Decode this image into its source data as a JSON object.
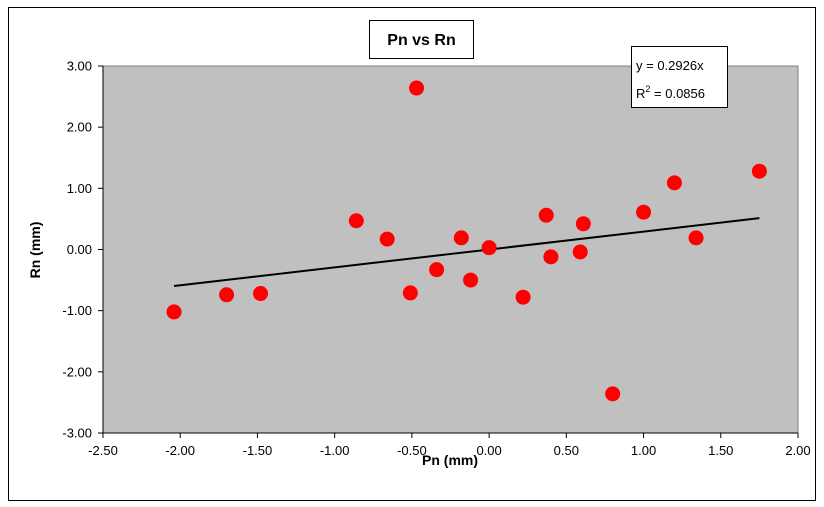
{
  "chart_data": {
    "type": "scatter",
    "title": "Pn vs Rn",
    "xlabel": "Pn (mm)",
    "ylabel": "Rn (mm)",
    "xlim": [
      -2.5,
      2.0
    ],
    "ylim": [
      -3.0,
      3.0
    ],
    "x_ticks": [
      "-2.50",
      "-2.00",
      "-1.50",
      "-1.00",
      "-0.50",
      "0.00",
      "0.50",
      "1.00",
      "1.50",
      "2.00"
    ],
    "y_ticks": [
      "3.00",
      "2.00",
      "1.00",
      "0.00",
      "-1.00",
      "-2.00",
      "-3.00"
    ],
    "grid": false,
    "plot_background": "#c0c0c0",
    "marker_color": "#ff0000",
    "trendline_color": "#000000",
    "points": [
      {
        "x": -2.04,
        "y": -1.02
      },
      {
        "x": -1.7,
        "y": -0.74
      },
      {
        "x": -1.48,
        "y": -0.72
      },
      {
        "x": -0.86,
        "y": 0.47
      },
      {
        "x": -0.66,
        "y": 0.17
      },
      {
        "x": -0.51,
        "y": -0.71
      },
      {
        "x": -0.47,
        "y": 2.64
      },
      {
        "x": -0.34,
        "y": -0.33
      },
      {
        "x": -0.18,
        "y": 0.19
      },
      {
        "x": -0.12,
        "y": -0.5
      },
      {
        "x": 0.0,
        "y": 0.03
      },
      {
        "x": 0.22,
        "y": -0.78
      },
      {
        "x": 0.37,
        "y": 0.56
      },
      {
        "x": 0.4,
        "y": -0.12
      },
      {
        "x": 0.59,
        "y": -0.04
      },
      {
        "x": 0.61,
        "y": 0.42
      },
      {
        "x": 0.8,
        "y": -2.36
      },
      {
        "x": 1.0,
        "y": 0.61
      },
      {
        "x": 1.2,
        "y": 1.09
      },
      {
        "x": 1.34,
        "y": 0.19
      },
      {
        "x": 1.75,
        "y": 1.28
      }
    ],
    "trendline": {
      "slope": 0.2926,
      "x_range": [
        -2.04,
        1.75
      ],
      "equation": "y = 0.2926x",
      "r2_prefix": "R",
      "r2_sup": "2",
      "r2_value": " = 0.0856"
    }
  }
}
